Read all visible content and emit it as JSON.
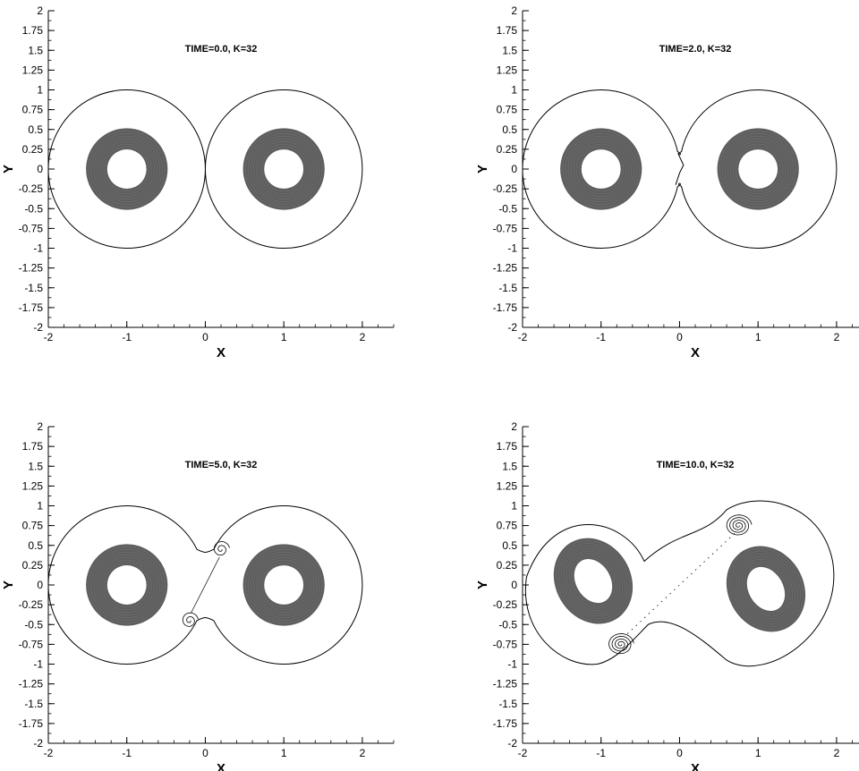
{
  "chart_data": [
    {
      "type": "scatter",
      "title": "TIME=0.0, K=32",
      "xlabel": "X",
      "ylabel": "Y",
      "xlim": [
        -2,
        2.4
      ],
      "ylim": [
        -2,
        2
      ],
      "xticks": [
        "-2",
        "-1",
        "0",
        "1",
        "2"
      ],
      "yticks": [
        "2",
        "1.75",
        "1.5",
        "1.25",
        "1",
        "0.75",
        "0.5",
        "0.25",
        "0",
        "-0.25",
        "-0.5",
        "-0.75",
        "-1",
        "-1.25",
        "-1.5",
        "-1.75",
        "-2"
      ],
      "grid": false,
      "vortices": [
        {
          "center": [
            -1,
            0
          ],
          "inner_radius": 0.25,
          "outer_radius": 0.52
        },
        {
          "center": [
            1,
            0
          ],
          "inner_radius": 0.25,
          "outer_radius": 0.52
        }
      ],
      "boundary": {
        "left_center": [
          -1,
          0
        ],
        "right_center": [
          1,
          0
        ],
        "radius": 1.0,
        "neck_half_width": 0.0
      }
    },
    {
      "type": "scatter",
      "title": "TIME=2.0, K=32",
      "xlabel": "X",
      "ylabel": "Y",
      "xlim": [
        -2,
        2.4
      ],
      "ylim": [
        -2,
        2
      ],
      "xticks": [
        "-2",
        "-1",
        "0",
        "1",
        "2"
      ],
      "yticks": [
        "2",
        "1.75",
        "1.5",
        "1.25",
        "1",
        "0.75",
        "0.5",
        "0.25",
        "0",
        "-0.25",
        "-0.5",
        "-0.75",
        "-1",
        "-1.25",
        "-1.5",
        "-1.75",
        "-2"
      ],
      "grid": false,
      "vortices": [
        {
          "center": [
            -1,
            0
          ],
          "inner_radius": 0.25,
          "outer_radius": 0.52
        },
        {
          "center": [
            1,
            0
          ],
          "inner_radius": 0.25,
          "outer_radius": 0.52
        }
      ],
      "boundary": {
        "left_center": [
          -1,
          0
        ],
        "right_center": [
          1,
          0
        ],
        "radius": 1.0,
        "neck_half_width": 0.22
      }
    },
    {
      "type": "scatter",
      "title": "TIME=5.0, K=32",
      "xlabel": "X",
      "ylabel": "Y",
      "xlim": [
        -2,
        2.4
      ],
      "ylim": [
        -2,
        2
      ],
      "xticks": [
        "-2",
        "-1",
        "0",
        "1",
        "2"
      ],
      "yticks": [
        "2",
        "1.75",
        "1.5",
        "1.25",
        "1",
        "0.75",
        "0.5",
        "0.25",
        "0",
        "-0.25",
        "-0.5",
        "-0.75",
        "-1",
        "-1.25",
        "-1.5",
        "-1.75",
        "-2"
      ],
      "grid": false,
      "vortices": [
        {
          "center": [
            -1,
            0
          ],
          "inner_radius": 0.25,
          "outer_radius": 0.52
        },
        {
          "center": [
            1,
            0
          ],
          "inner_radius": 0.25,
          "outer_radius": 0.52
        }
      ],
      "boundary": {
        "left_center": [
          -1,
          0
        ],
        "right_center": [
          1,
          0
        ],
        "radius": 1.0,
        "neck_half_width": 0.45
      },
      "small_spirals": [
        [
          0.2,
          0.45
        ],
        [
          -0.2,
          -0.45
        ]
      ]
    },
    {
      "type": "scatter",
      "title": "TIME=10.0, K=32",
      "xlabel": "X",
      "ylabel": "Y",
      "xlim": [
        -2,
        2.4
      ],
      "ylim": [
        -2,
        2
      ],
      "xticks": [
        "-2",
        "-1",
        "0",
        "1",
        "2"
      ],
      "yticks": [
        "2",
        "1.75",
        "1.5",
        "1.25",
        "1",
        "0.75",
        "0.5",
        "0.25",
        "0",
        "-0.25",
        "-0.5",
        "-0.75",
        "-1",
        "-1.25",
        "-1.5",
        "-1.75",
        "-2"
      ],
      "grid": false,
      "vortices": [
        {
          "center": [
            -1.1,
            0.05
          ],
          "inner_radius": 0.22,
          "outer_radius": 0.48,
          "deformed": true
        },
        {
          "center": [
            1.1,
            -0.05
          ],
          "inner_radius": 0.22,
          "outer_radius": 0.48,
          "deformed": true
        }
      ],
      "spirals": [
        [
          0.75,
          0.75
        ],
        [
          -0.75,
          -0.75
        ]
      ]
    }
  ]
}
